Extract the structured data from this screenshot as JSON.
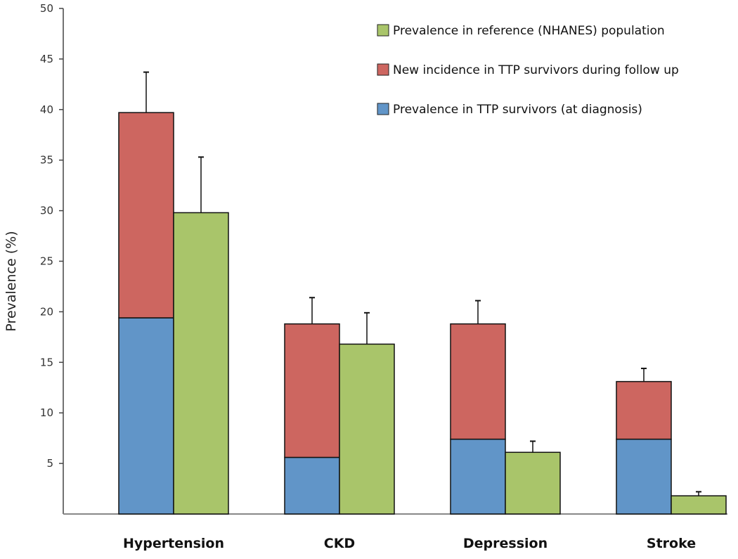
{
  "chart_data": {
    "type": "bar",
    "stacked": true,
    "title": "",
    "xlabel": "",
    "ylabel": "Prevalence (%)",
    "ylim": [
      0,
      50
    ],
    "yticks": [
      5,
      10,
      15,
      20,
      25,
      30,
      35,
      40,
      45,
      50
    ],
    "grid": false,
    "legend_position": "top-right",
    "categories": [
      "Hypertension",
      "CKD",
      "Depression",
      "Stroke"
    ],
    "series": [
      {
        "name": "Prevalence in TTP survivors (at diagnosis)",
        "color": "#6195c8",
        "stack": "ttp",
        "values": [
          19.4,
          5.6,
          7.4,
          7.4
        ]
      },
      {
        "name": "New incidence in TTP survivors during follow up",
        "color": "#cd6660",
        "stack": "ttp",
        "values": [
          20.3,
          13.2,
          11.4,
          5.7
        ],
        "error_upper_total": [
          43.7,
          21.4,
          21.1,
          14.4
        ]
      },
      {
        "name": "Prevalence in reference (NHANES) population",
        "color": "#a9c56a",
        "stack": "ref",
        "values": [
          29.8,
          16.8,
          6.1,
          1.8
        ],
        "error_upper_total": [
          35.3,
          19.9,
          7.2,
          2.2
        ]
      }
    ],
    "legend_order": [
      2,
      1,
      0
    ]
  }
}
